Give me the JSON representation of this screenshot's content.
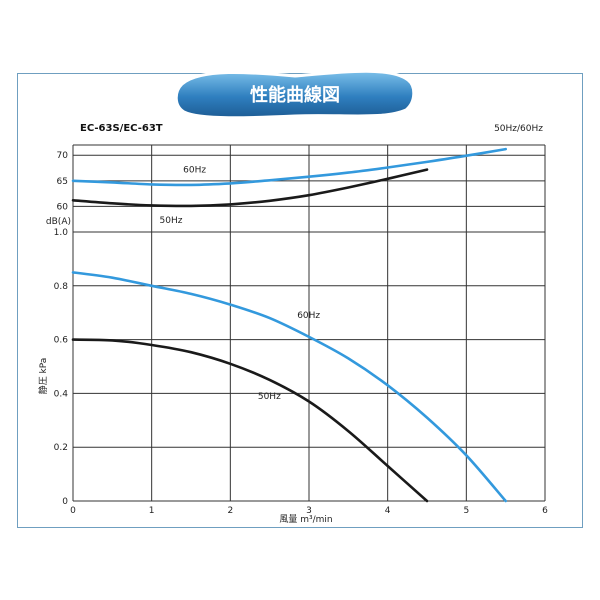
{
  "banner": {
    "title": "性能曲線図"
  },
  "chart_data": [
    {
      "type": "line",
      "panel": "noise",
      "model": "EC-63S/EC-63T",
      "freq_note": "50Hz/60Hz",
      "ylabel": "dB(A)",
      "xlim": [
        0,
        6
      ],
      "ylim": [
        55,
        72
      ],
      "y_ticks": [
        "60",
        "65",
        "70"
      ],
      "grid": true,
      "series": [
        {
          "name": "60Hz",
          "color": "#3399dd",
          "x": [
            0,
            0.5,
            1.0,
            1.5,
            2.0,
            2.5,
            3.0,
            3.5,
            4.0,
            4.5,
            5.0,
            5.5
          ],
          "y": [
            65.0,
            64.7,
            64.3,
            64.2,
            64.5,
            65.1,
            65.8,
            66.6,
            67.6,
            68.7,
            69.9,
            71.2
          ]
        },
        {
          "name": "50Hz",
          "color": "#1a1a1a",
          "x": [
            0,
            0.5,
            1.0,
            1.5,
            2.0,
            2.5,
            3.0,
            3.5,
            4.0,
            4.5
          ],
          "y": [
            61.2,
            60.6,
            60.2,
            60.1,
            60.4,
            61.1,
            62.2,
            63.7,
            65.4,
            67.2
          ]
        }
      ]
    },
    {
      "type": "line",
      "panel": "pressure",
      "xlabel": "風量 m³/min",
      "ylabel": "静圧 kPa",
      "xlim": [
        0,
        6
      ],
      "ylim": [
        0,
        1.0
      ],
      "x_ticks": [
        "0",
        "1",
        "2",
        "3",
        "4",
        "5",
        "6"
      ],
      "y_ticks": [
        "0",
        "0.2",
        "0.4",
        "0.6",
        "0.8",
        "1.0"
      ],
      "grid": true,
      "series": [
        {
          "name": "60Hz",
          "color": "#3399dd",
          "x": [
            0,
            0.5,
            1.0,
            1.5,
            2.0,
            2.5,
            3.0,
            3.5,
            4.0,
            4.5,
            5.0,
            5.5
          ],
          "y": [
            0.85,
            0.83,
            0.8,
            0.77,
            0.73,
            0.68,
            0.61,
            0.53,
            0.43,
            0.31,
            0.17,
            0.0
          ]
        },
        {
          "name": "50Hz",
          "color": "#1a1a1a",
          "x": [
            0,
            0.5,
            1.0,
            1.5,
            2.0,
            2.5,
            3.0,
            3.5,
            4.0,
            4.5
          ],
          "y": [
            0.6,
            0.597,
            0.58,
            0.553,
            0.51,
            0.45,
            0.37,
            0.26,
            0.13,
            0.0
          ]
        }
      ]
    }
  ]
}
